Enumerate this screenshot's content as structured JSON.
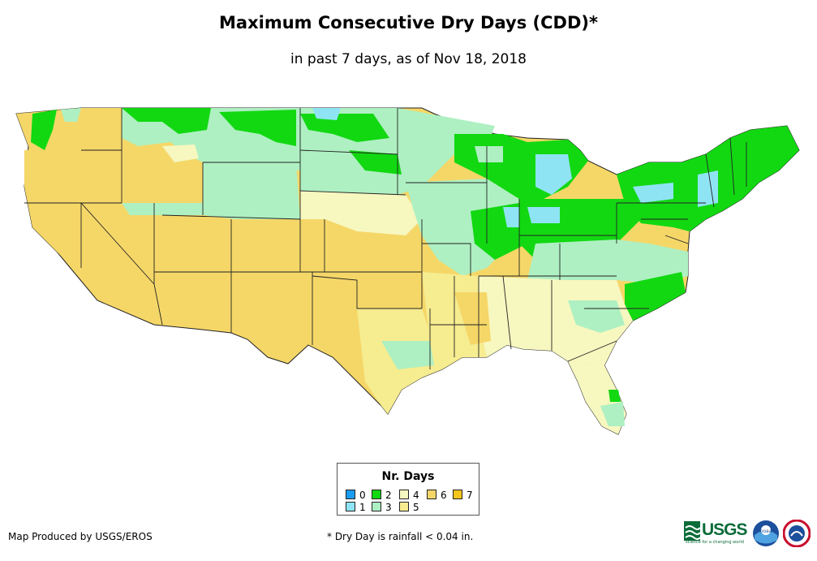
{
  "title": "Maximum Consecutive Dry Days (CDD)*",
  "subtitle": "in past 7 days, as of Nov 18, 2018",
  "legend": {
    "title": "Nr. Days",
    "items": [
      {
        "label": "0",
        "color": "#1a9cf0"
      },
      {
        "label": "1",
        "color": "#8fe4f4"
      },
      {
        "label": "2",
        "color": "#12d812"
      },
      {
        "label": "3",
        "color": "#aef0c2"
      },
      {
        "label": "4",
        "color": "#f7f7c0"
      },
      {
        "label": "5",
        "color": "#f6ec90"
      },
      {
        "label": "6",
        "color": "#f5d768"
      },
      {
        "label": "7",
        "color": "#f4c51a"
      }
    ]
  },
  "footer": {
    "credit": "Map Produced by USGS/EROS",
    "note": "* Dry Day is rainfall < 0.04 in."
  },
  "logos": {
    "usgs": "USGS",
    "usgs_tagline": "science for a changing world",
    "noaa": "noaa"
  }
}
